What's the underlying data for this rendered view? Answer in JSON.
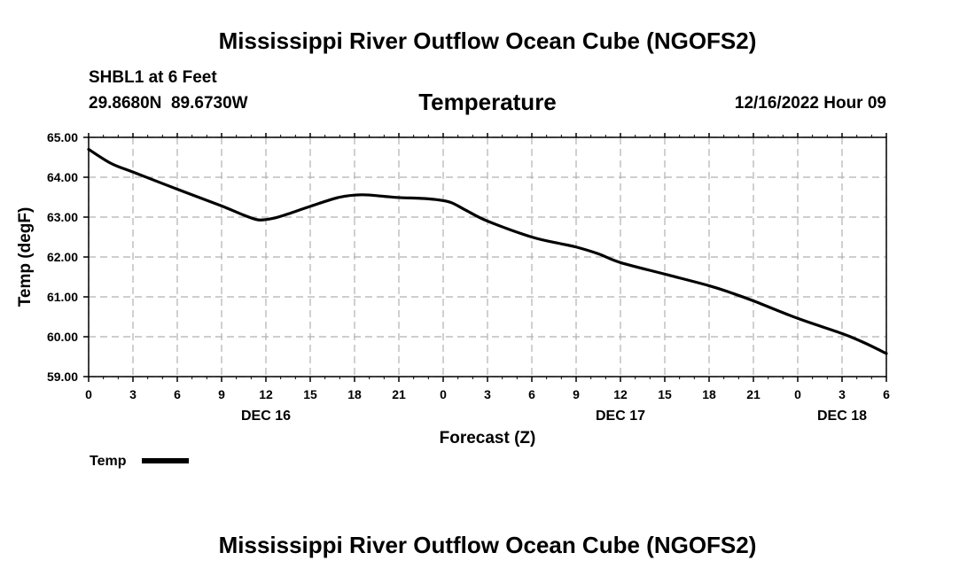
{
  "page_title": "Mississippi River Outflow Ocean Cube (NGOFS2)",
  "footer_title": "Mississippi River Outflow Ocean Cube (NGOFS2)",
  "station": {
    "name_depth": "SHBL1 at 6 Feet",
    "coords": "29.8680N  89.6730W",
    "timestamp": "12/16/2022 Hour 09"
  },
  "chart_data": {
    "type": "line",
    "title": "Temperature",
    "xlabel": "Forecast (Z)",
    "ylabel": "Temp (degF)",
    "ylim": [
      59.0,
      65.0
    ],
    "xlim": [
      0,
      54
    ],
    "y_ticks": [
      "59.00",
      "60.00",
      "61.00",
      "62.00",
      "63.00",
      "64.00",
      "65.00"
    ],
    "x_ticks": [
      {
        "h": 0,
        "label": "0"
      },
      {
        "h": 3,
        "label": "3"
      },
      {
        "h": 6,
        "label": "6"
      },
      {
        "h": 9,
        "label": "9"
      },
      {
        "h": 12,
        "label": "12"
      },
      {
        "h": 15,
        "label": "15"
      },
      {
        "h": 18,
        "label": "18"
      },
      {
        "h": 21,
        "label": "21"
      },
      {
        "h": 24,
        "label": "0"
      },
      {
        "h": 27,
        "label": "3"
      },
      {
        "h": 30,
        "label": "6"
      },
      {
        "h": 33,
        "label": "9"
      },
      {
        "h": 36,
        "label": "12"
      },
      {
        "h": 39,
        "label": "15"
      },
      {
        "h": 42,
        "label": "18"
      },
      {
        "h": 45,
        "label": "21"
      },
      {
        "h": 48,
        "label": "0"
      },
      {
        "h": 51,
        "label": "3"
      },
      {
        "h": 54,
        "label": "6"
      }
    ],
    "date_labels": [
      {
        "h": 12,
        "label": "DEC 16"
      },
      {
        "h": 36,
        "label": "DEC 17"
      },
      {
        "h": 51,
        "label": "DEC 18"
      }
    ],
    "grid": true,
    "legend_position": "bottom-left",
    "series": [
      {
        "name": "Temp",
        "color": "#000000",
        "x": [
          0,
          1.5,
          3,
          6,
          9,
          10.5,
          11.5,
          12.5,
          13.5,
          15,
          17,
          18.5,
          20,
          21,
          22.5,
          23.5,
          24.5,
          25.5,
          27,
          30,
          32,
          33,
          34.5,
          36,
          39,
          42,
          43.5,
          45,
          48,
          51,
          52.5,
          54
        ],
        "values": [
          64.7,
          64.35,
          64.13,
          63.7,
          63.28,
          63.05,
          62.93,
          62.97,
          63.08,
          63.27,
          63.5,
          63.56,
          63.52,
          63.49,
          63.47,
          63.44,
          63.37,
          63.18,
          62.9,
          62.5,
          62.33,
          62.25,
          62.08,
          61.86,
          61.57,
          61.28,
          61.1,
          60.9,
          60.46,
          60.08,
          59.85,
          59.58
        ]
      }
    ]
  }
}
